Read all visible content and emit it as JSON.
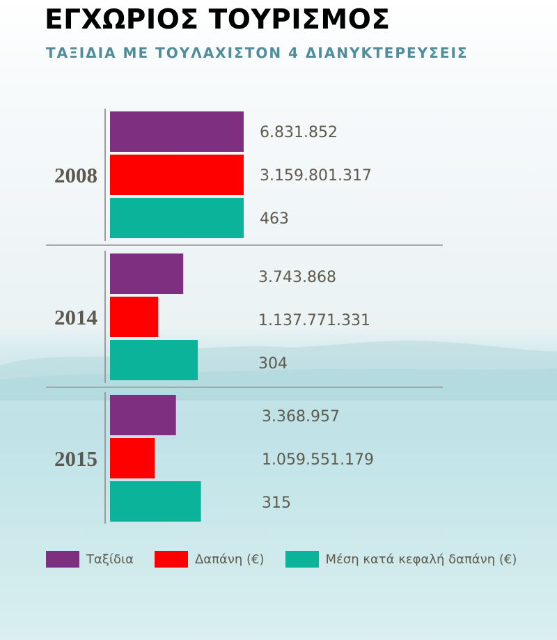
{
  "title": "ΕΓΧΩΡΙΟΣ ΤΟΥΡΙΣΜΟΣ",
  "subtitle": "ΤΑΞΙΔΙΑ ΜΕ ΤΟΥΛΑΧΙΣΤΟΝ 4 ΔΙΑΝΥΚΤΕΡΕΥΣΕΙΣ",
  "colors": {
    "trips": "#7e2f80",
    "expense": "#fe0000",
    "per_capita": "#0bb39a",
    "text": "#5e5a4c",
    "subtitle": "#4f8d9d"
  },
  "legend": [
    {
      "label": "Ταξίδια",
      "color": "#7e2f80"
    },
    {
      "label": "Δαπάνη (€)",
      "color": "#fe0000"
    },
    {
      "label": "Μέση κατά κεφαλή δαπάνη (€)",
      "color": "#0bb39a"
    }
  ],
  "chart_data": {
    "type": "bar",
    "orientation": "horizontal",
    "categories": [
      "2008",
      "2014",
      "2015"
    ],
    "series": [
      {
        "name": "Ταξίδια",
        "values": [
          6831852,
          3743868,
          3368957
        ],
        "labels": [
          "6.831.852",
          "3.743.868",
          "3.368.957"
        ],
        "color": "#7e2f80"
      },
      {
        "name": "Δαπάνη (€)",
        "values": [
          3159801317,
          1137771331,
          1059551179
        ],
        "labels": [
          "3.159.801.317",
          "1.137.771.331",
          "1.059.551.179"
        ],
        "color": "#fe0000"
      },
      {
        "name": "Μέση κατά κεφαλή δαπάνη (€)",
        "values": [
          463,
          304,
          315
        ],
        "labels": [
          "463",
          "304",
          "315"
        ],
        "color": "#0bb39a"
      }
    ],
    "grid": false,
    "legend_position": "bottom"
  }
}
